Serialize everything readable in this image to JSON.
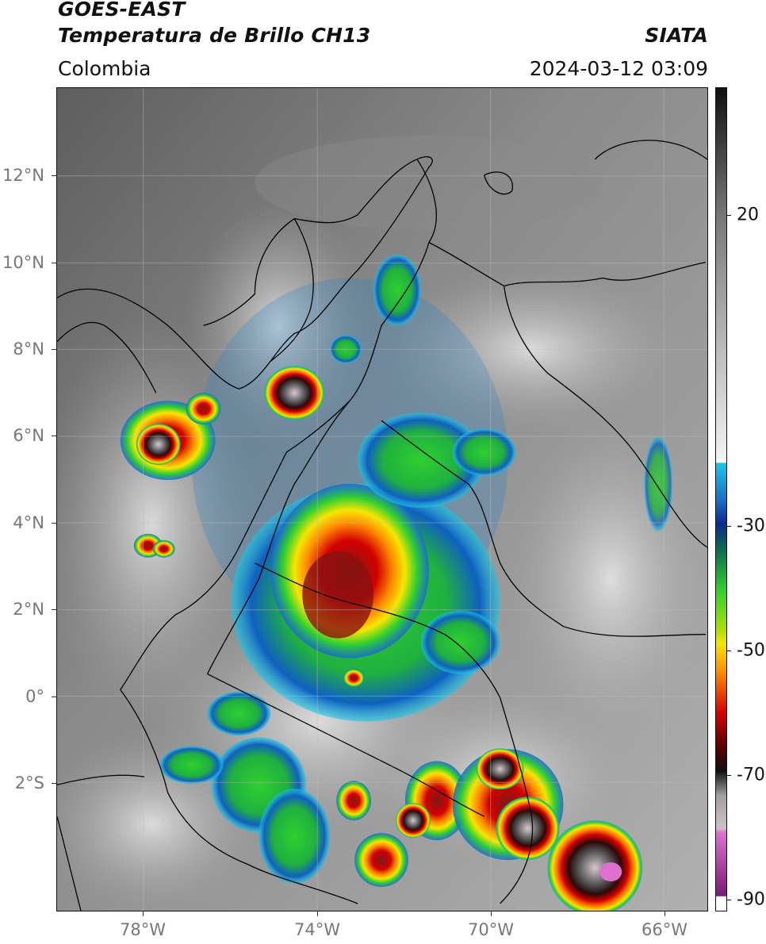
{
  "header": {
    "line1": "GOES-EAST",
    "line2": "Temperatura de Brillo CH13",
    "region": "Colombia",
    "agency": "SIATA",
    "datetime": "2024-03-12 03:09"
  },
  "map": {
    "lat_ticks": [
      "12°N",
      "10°N",
      "8°N",
      "6°N",
      "4°N",
      "2°N",
      "0°",
      "2°S"
    ],
    "lon_ticks": [
      "78°W",
      "74°W",
      "70°W",
      "66°W"
    ],
    "lon_range": [
      -80,
      -65
    ],
    "lat_range": [
      -5,
      14
    ],
    "grid": true
  },
  "colorbar": {
    "labels": [
      "20",
      "-30",
      "-50",
      "-70",
      "-90"
    ],
    "colors": {
      "gray_dark": "#111111",
      "gray_light": "#f2f2f2",
      "cyan": "#19c8e6",
      "blue": "#0a2a8c",
      "green": "#2fd02f",
      "yellow": "#f5e600",
      "orange": "#ff8c00",
      "red": "#d40000",
      "dark_red": "#5a0000",
      "magenta": "#e070d0",
      "purple": "#7a1a7a"
    }
  }
}
